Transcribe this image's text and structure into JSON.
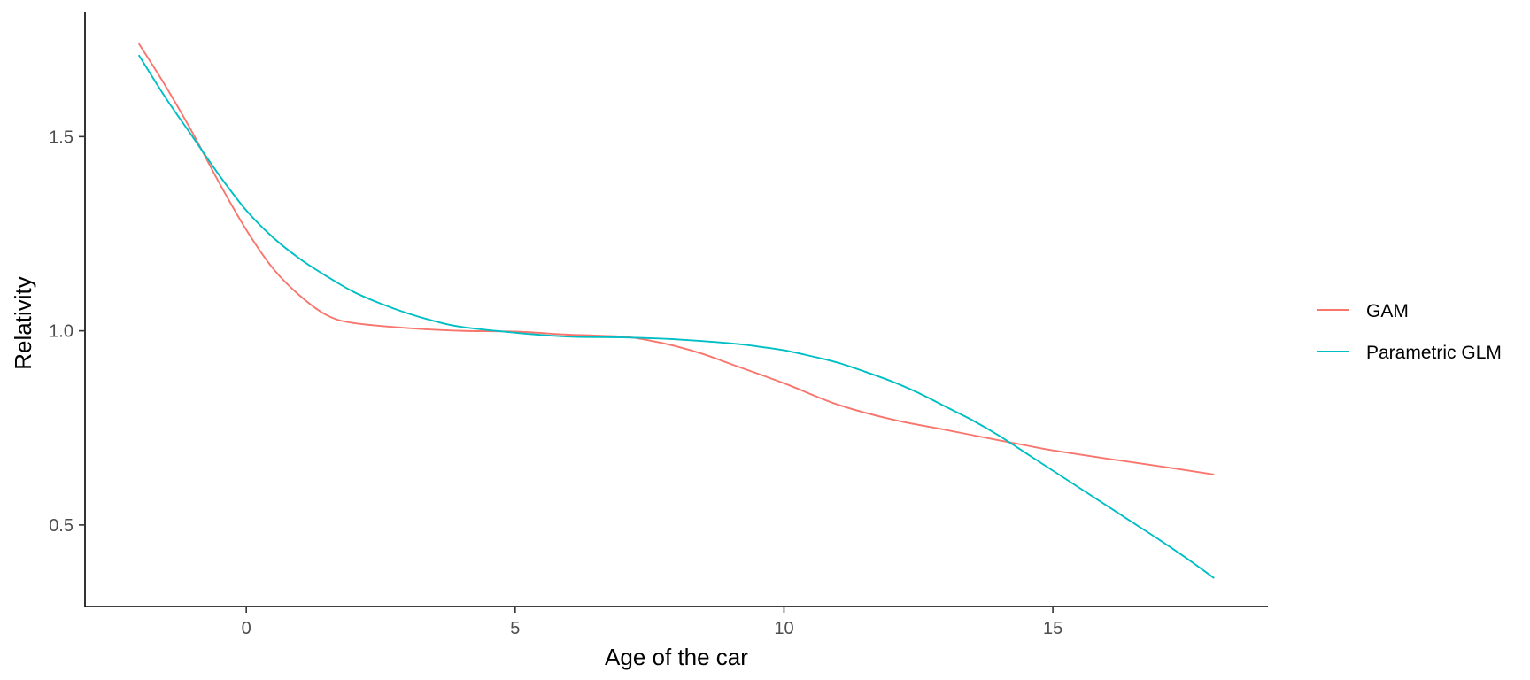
{
  "chart_data": {
    "type": "line",
    "title": "",
    "xlabel": "Age of the car",
    "ylabel": "Relativity",
    "xlim": [
      -3,
      19
    ],
    "ylim": [
      0.29,
      1.82
    ],
    "xticks": [
      0,
      5,
      10,
      15
    ],
    "yticks": [
      0.5,
      1.0,
      1.5
    ],
    "xtick_labels": [
      "0",
      "5",
      "10",
      "15"
    ],
    "ytick_labels": [
      "0.5",
      "1.0",
      "1.5"
    ],
    "grid": false,
    "legend_position": "right",
    "series": [
      {
        "name": "GAM",
        "color": "#F8766D",
        "x": [
          -2,
          -1.5,
          -1,
          -0.5,
          0,
          0.5,
          1,
          1.5,
          2,
          3,
          4,
          5,
          6,
          7,
          7.5,
          8,
          8.5,
          9,
          10,
          11,
          12,
          13,
          14,
          14.5,
          15,
          16,
          17,
          18
        ],
        "y": [
          1.74,
          1.63,
          1.51,
          1.38,
          1.26,
          1.16,
          1.09,
          1.04,
          1.02,
          1.007,
          1.0,
          0.998,
          0.99,
          0.985,
          0.975,
          0.96,
          0.94,
          0.915,
          0.865,
          0.81,
          0.772,
          0.745,
          0.718,
          0.705,
          0.692,
          0.671,
          0.651,
          0.63
        ]
      },
      {
        "name": "Parametric GLM",
        "color": "#00BFC4",
        "x": [
          -2,
          -1.5,
          -1,
          -0.5,
          0,
          0.5,
          1,
          1.5,
          2,
          2.5,
          3,
          3.5,
          4,
          5,
          6,
          7,
          8,
          9,
          9.5,
          10,
          10.5,
          11,
          11.5,
          12,
          12.5,
          13,
          13.5,
          14,
          14.5,
          15,
          15.5,
          16,
          16.5,
          17,
          17.5,
          18
        ],
        "y": [
          1.71,
          1.6,
          1.5,
          1.4,
          1.31,
          1.24,
          1.185,
          1.14,
          1.1,
          1.07,
          1.045,
          1.025,
          1.01,
          0.995,
          0.985,
          0.983,
          0.978,
          0.968,
          0.96,
          0.95,
          0.935,
          0.918,
          0.895,
          0.87,
          0.84,
          0.805,
          0.77,
          0.73,
          0.685,
          0.64,
          0.595,
          0.55,
          0.505,
          0.46,
          0.413,
          0.363
        ]
      }
    ]
  }
}
